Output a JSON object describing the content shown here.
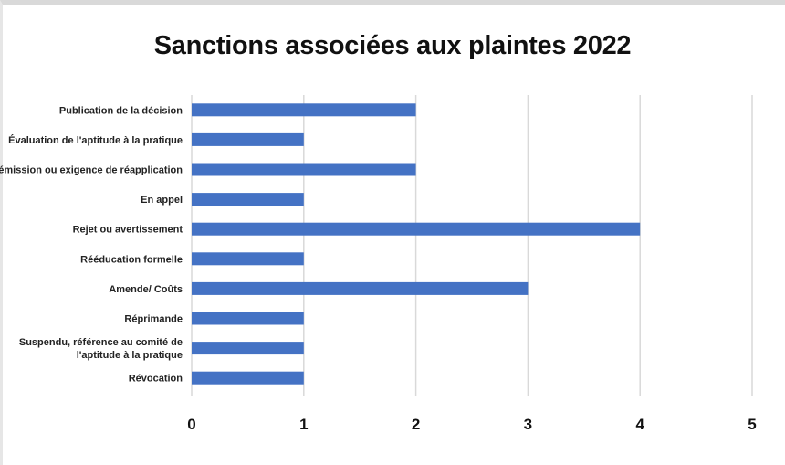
{
  "chart_data": {
    "type": "bar",
    "orientation": "horizontal",
    "title": "Sanctions associées aux plaintes 2022",
    "xlabel": "",
    "ylabel": "",
    "categories": [
      [
        "Publication de la décision"
      ],
      [
        "Évaluation de l'aptitude à la pratique"
      ],
      [
        "Démission ou exigence de réapplication"
      ],
      [
        "En appel"
      ],
      [
        "Rejet ou avertissement"
      ],
      [
        "Rééducation formelle"
      ],
      [
        "Amende/ Coûts"
      ],
      [
        "Réprimande"
      ],
      [
        "Suspendu, référence au comité de",
        "l'aptitude à la pratique"
      ],
      [
        "Révocation"
      ]
    ],
    "values": [
      2,
      1,
      2,
      1,
      4,
      1,
      3,
      1,
      1,
      1
    ],
    "xlim": [
      0,
      5
    ],
    "xticks": [
      "0",
      "1",
      "2",
      "3",
      "4",
      "5"
    ],
    "grid": "vertical",
    "bar_color": "#4472c4",
    "grid_color": "#d9d9d9"
  }
}
